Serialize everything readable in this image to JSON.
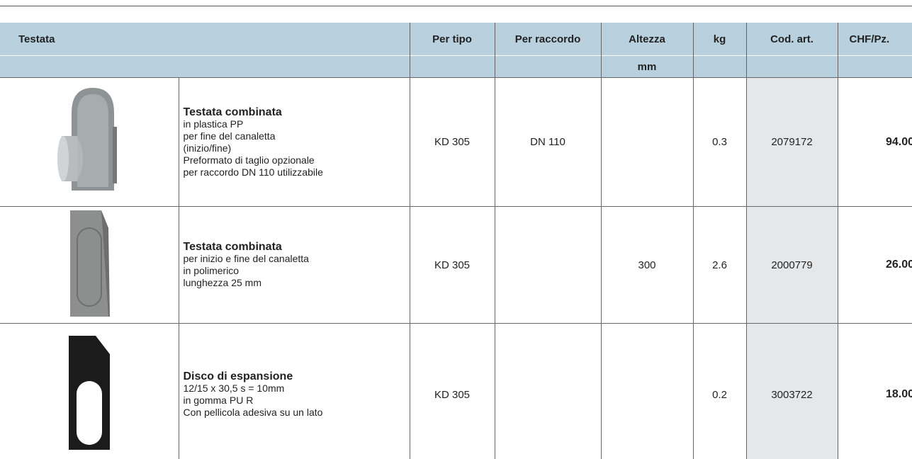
{
  "header": {
    "columns": [
      "Testata",
      "Per tipo",
      "Per raccordo",
      "Altezza",
      "kg",
      "Cod. art.",
      "CHF/Pz."
    ],
    "altezza_unit": "mm"
  },
  "rows": [
    {
      "title": "Testata combinata",
      "lines": [
        "in plastica PP",
        "per fine del canaletta",
        "(inizio/fine)",
        "Preformato di taglio opzionale",
        "per raccordo DN 110 utilizzabile"
      ],
      "per_tipo": "KD 305",
      "per_raccordo": "DN 110",
      "kg": "0.3",
      "cod_art": "2079172",
      "price": "94.00"
    },
    {
      "title": "Testata combinata",
      "lines": [
        "per inizio e fine del canaletta",
        "in polimerico",
        "lunghezza  25 mm"
      ],
      "per_tipo": "KD 305",
      "altezza": "300",
      "kg": "2.6",
      "cod_art": "2000779",
      "price": "26.00"
    },
    {
      "title": "Disco di espansione",
      "lines": [
        "12/15 x 30,5 s = 10mm",
        "in gomma PU R",
        "Con pellicola adesiva su un lato"
      ],
      "per_tipo": "KD 305",
      "kg": "0.2",
      "cod_art": "3003722",
      "price": "18.00"
    }
  ]
}
